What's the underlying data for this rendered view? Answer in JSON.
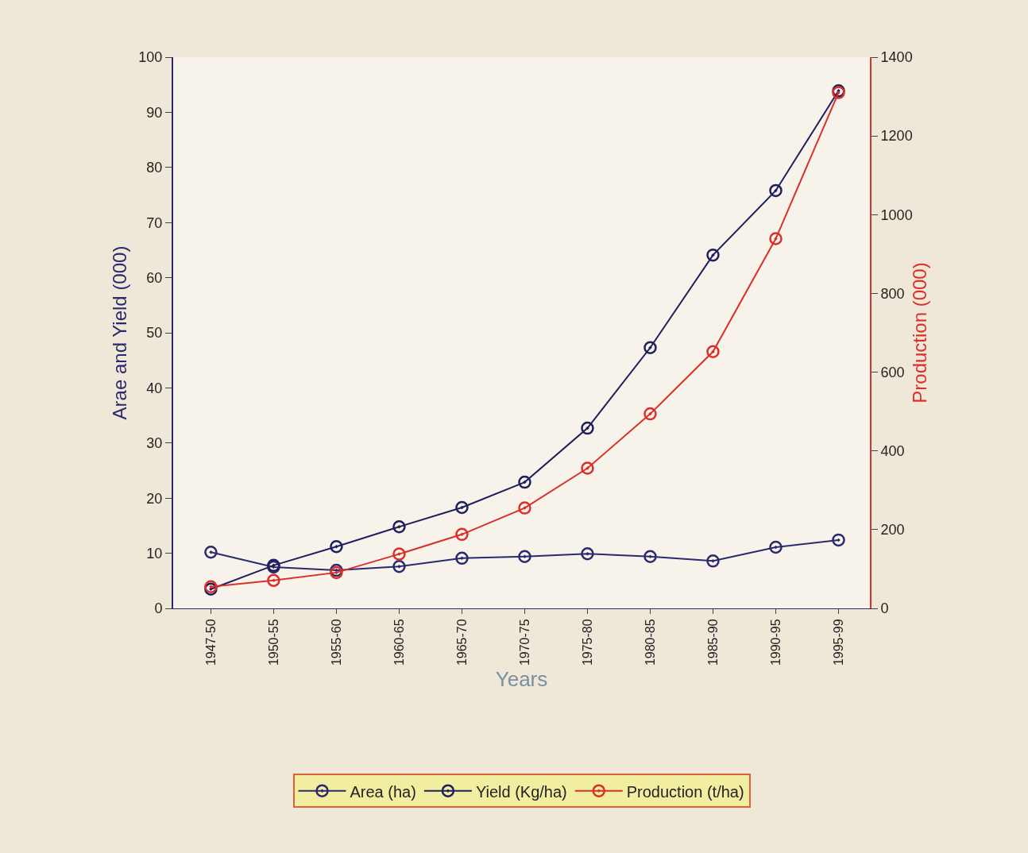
{
  "chart_data": {
    "type": "line",
    "xlabel": "Years",
    "ylabel": "Arae and Yield (000)",
    "y2label": "Production (000)",
    "categories": [
      "1947-50",
      "1950-55",
      "1955-60",
      "1960-65",
      "1965-70",
      "1970-75",
      "1975-80",
      "1980-85",
      "1985-90",
      "1990-95",
      "1995-99"
    ],
    "series": [
      {
        "name": "Area (ha)",
        "color": "#2b2a6e",
        "values": [
          10.2,
          7.5,
          6.9,
          7.6,
          9.1,
          9.4,
          9.9,
          9.4,
          8.6,
          11.1,
          12.4
        ]
      },
      {
        "name": "Yield (Kg/ha)",
        "color": "#1f1f5e",
        "values": [
          3.5,
          7.8,
          11.2,
          14.8,
          18.3,
          22.9,
          32.7,
          47.3,
          64.1,
          75.8,
          93.9
        ]
      },
      {
        "name": "Production (t/ha)",
        "color": "#d9302a",
        "axis": "y2",
        "values": [
          55,
          71,
          91,
          138,
          188,
          255,
          356,
          494,
          652,
          939,
          1310
        ]
      }
    ],
    "ylim": [
      0,
      100
    ],
    "yticks": [
      0,
      10,
      20,
      30,
      40,
      50,
      60,
      70,
      80,
      90,
      100
    ],
    "y2lim": [
      0,
      1400
    ],
    "y2ticks": [
      0,
      200,
      400,
      600,
      800,
      1000,
      1200,
      1400
    ],
    "grid": false,
    "legend": "bottom",
    "marker": "circle",
    "line_style": "solid"
  }
}
